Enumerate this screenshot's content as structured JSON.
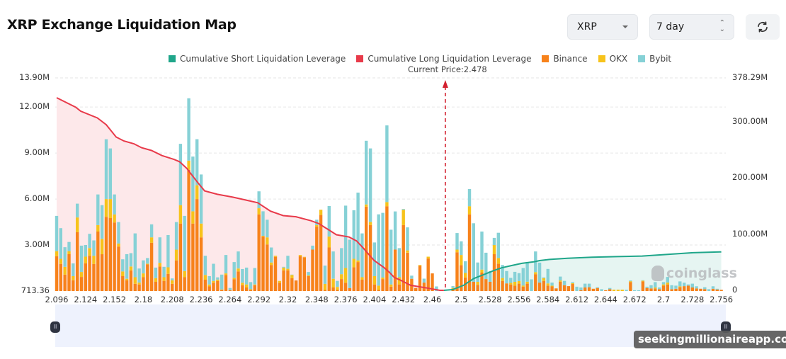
{
  "header": {
    "title": "XRP Exchange Liquidation Map",
    "coin_select": "XRP",
    "range_select": "7 day",
    "refresh_icon": "refresh-icon"
  },
  "legend": [
    {
      "label": "Cumulative Short Liquidation Leverage",
      "color": "#1fa68a"
    },
    {
      "label": "Cumulative Long Liquidation Leverage",
      "color": "#e83a4a"
    },
    {
      "label": "Binance",
      "color": "#f7821b"
    },
    {
      "label": "OKX",
      "color": "#f7c31b"
    },
    {
      "label": "Bybit",
      "color": "#86d1d6"
    }
  ],
  "current_price_label": "Current Price:2.478",
  "watermarks": {
    "brand": "coinglass",
    "overlay": "seekingmillionaireapp.com"
  },
  "chart_data": {
    "type": "bar",
    "stacked": true,
    "current_price": 2.478,
    "x_tick_labels": [
      "2.096",
      "2.124",
      "2.152",
      "2.18",
      "2.208",
      "2.236",
      "2.264",
      "2.292",
      "2.32",
      "2.348",
      "2.376",
      "2.404",
      "2.432",
      "2.46",
      "2.5",
      "2.528",
      "2.556",
      "2.584",
      "2.612",
      "2.644",
      "2.672",
      "2.7",
      "2.728",
      "2.756"
    ],
    "y_left": {
      "ticks": [
        "713.36",
        "3.00M",
        "6.00M",
        "9.00M",
        "12.00M",
        "13.90M"
      ],
      "tick_values_m": [
        0.00071336,
        3,
        6,
        9,
        12,
        13.9
      ],
      "range_m": [
        0.00071336,
        13.9
      ]
    },
    "y_right": {
      "ticks": [
        "0",
        "100.00M",
        "200.00M",
        "300.00M",
        "378.29M"
      ],
      "tick_values_m": [
        0,
        100,
        200,
        300,
        378.29
      ],
      "range_m": [
        0,
        378.29
      ]
    },
    "grid": true,
    "legend_position": "top",
    "series": [
      {
        "name": "Binance",
        "color": "#f7821b",
        "axis": "left",
        "values_m": [
          2.27,
          1.77,
          1.07,
          2.4,
          0.7,
          3.84,
          0.92,
          1.81,
          2.3,
          1.77,
          3.88,
          2.4,
          4.84,
          4.76,
          4.47,
          2.9,
          0.97,
          0.7,
          1.35,
          0.47,
          0.43,
          0.9,
          1.74,
          3.15,
          0.6,
          1.6,
          0.66,
          1.12,
          0.47,
          2.0,
          4.4,
          0.9,
          7.9,
          4.4,
          6.0,
          3.5,
          0.74,
          0.3,
          0.54,
          0.66,
          0.08,
          1.05,
          0.05,
          0.77,
          1.28,
          0.38,
          0.23,
          0.07,
          0.38,
          5.0,
          3.55,
          3.04,
          1.7,
          2.23,
          0.54,
          1.35,
          1.35,
          0.84,
          0.69,
          2.27,
          2.2,
          0.97,
          2.7,
          4.2,
          4.96,
          0.07,
          2.84,
          0.23,
          0.07,
          0.78,
          0.54,
          0.2,
          1.55,
          1.89,
          0.74,
          5.5,
          4.3,
          0.43,
          0.07,
          0.78,
          5.53,
          0.28,
          2.7,
          0.43,
          4.3,
          2.5,
          0.8,
          0.2,
          1.65,
          0.55,
          2.12,
          1.15,
          0,
          0,
          0,
          0,
          0.1,
          2.53,
          1.69,
          0.88,
          5.0,
          0.6,
          0.4,
          1.2,
          0.78,
          0.6,
          2.4,
          1.78,
          0.66,
          0.5,
          0.43,
          0.35,
          0.48,
          0.28,
          0.48,
          0,
          1.1,
          0.55,
          0.66,
          0.35,
          0.3,
          0.17,
          0.61,
          0.38,
          0.32,
          0.46,
          0,
          0.05,
          0.23,
          0.25,
          0.15,
          0.2,
          0,
          0.05,
          0.12,
          0,
          0,
          0,
          0,
          0.58,
          0,
          0,
          0.63,
          0.2,
          0.17,
          0.17,
          0.12,
          0.35,
          0.43,
          0.12,
          0.15,
          0.25,
          0.32,
          0.35,
          0.23,
          0.17,
          0.15,
          0.12,
          0,
          0.15,
          0.1,
          0.08
        ]
      },
      {
        "name": "OKX",
        "color": "#f7c31b",
        "axis": "left",
        "values_m": [
          0.33,
          0.33,
          0.51,
          0.2,
          0.27,
          0.96,
          0.32,
          0.43,
          0.5,
          0.53,
          0.42,
          1.0,
          1.16,
          1.24,
          0.53,
          0.2,
          0.31,
          0.1,
          0.25,
          0.43,
          0.12,
          0.25,
          0.04,
          0.35,
          0.24,
          0.24,
          0.24,
          0.43,
          0.23,
          0.7,
          1.2,
          0.4,
          0.6,
          0.8,
          0.9,
          0.9,
          0.31,
          0.13,
          0.12,
          0.08,
          0.02,
          0.1,
          0,
          0.09,
          0.19,
          0.16,
          0.2,
          0.05,
          0.05,
          0.4,
          0.05,
          0.46,
          0.16,
          0.07,
          0.12,
          0.18,
          0.1,
          0.21,
          0,
          0.08,
          0.03,
          0.05,
          0,
          0.1,
          0.34,
          0.4,
          0.71,
          0.57,
          0.2,
          0.32,
          0.96,
          0,
          0.55,
          0.11,
          0.16,
          0.15,
          0.2,
          0.54,
          0.28,
          0.1,
          0.27,
          0.15,
          0,
          0.47,
          1.0,
          0.15,
          0,
          0,
          0.05,
          0,
          0.12,
          0,
          0,
          0,
          0,
          0,
          0.1,
          0.17,
          0.66,
          0.3,
          0.53,
          0,
          0.2,
          0.2,
          0,
          0,
          0.6,
          0.37,
          0.19,
          0,
          0.1,
          0.25,
          0.17,
          0.08,
          0.13,
          0,
          0.13,
          0,
          0.18,
          0.15,
          0.05,
          0,
          0.08,
          0,
          0,
          0.05,
          0,
          0,
          0,
          0,
          0,
          0,
          0,
          0,
          0,
          0.09,
          0.09,
          0.09,
          0,
          0.06,
          0,
          0,
          0.05,
          0,
          0,
          0.06,
          0,
          0.08,
          0.12,
          0,
          0,
          0.06,
          0,
          0,
          0,
          0,
          0,
          0,
          0,
          0,
          0,
          0
        ]
      },
      {
        "name": "Bybit",
        "color": "#86d1d6",
        "axis": "left",
        "values_m": [
          2.3,
          2.0,
          1.28,
          0.6,
          0.83,
          0.9,
          1.72,
          0.76,
          0.93,
          1.0,
          2.0,
          2.2,
          3.9,
          3.3,
          1.3,
          1.4,
          0.79,
          1.6,
          0.87,
          2.86,
          0.92,
          0.85,
          0.37,
          0.85,
          0.69,
          1.66,
          0.68,
          2.1,
          0.12,
          1.8,
          4.0,
          3.6,
          4.07,
          3.57,
          3.0,
          3.2,
          1.25,
          0.54,
          1.12,
          0.15,
          0.97,
          1.2,
          0.15,
          1.03,
          1.11,
          0.89,
          1.1,
          0.46,
          1.07,
          1.1,
          1.6,
          1.15,
          0.98,
          0,
          0,
          0.05,
          0.85,
          0.02,
          0,
          0,
          0,
          0.22,
          0.26,
          0.35,
          0,
          1.19,
          1.99,
          1.78,
          0.39,
          1.7,
          4.07,
          3.15,
          3.17,
          4.42,
          2.86,
          4.15,
          4.8,
          2.2,
          4.65,
          4.22,
          5.0,
          3.57,
          2.49,
          1.9,
          0.05,
          1.5,
          0.2,
          0,
          0,
          0.26,
          0,
          0,
          0.3,
          0,
          0,
          0,
          0.12,
          1.08,
          0.89,
          0.76,
          1.12,
          3.82,
          1.26,
          2.48,
          1.72,
          0.7,
          0.47,
          1.65,
          0.85,
          0.8,
          0.33,
          0.65,
          0.52,
          1.14,
          1.24,
          0.76,
          1.35,
          1.3,
          0.05,
          0.94,
          0.2,
          0,
          0.25,
          0.28,
          0,
          0.07,
          0.28,
          0.18,
          0.25,
          0.23,
          0,
          0.05,
          0.12,
          0,
          0.08,
          0,
          0,
          0,
          0.08,
          0.05,
          0.05,
          0.05,
          0.02,
          0.08,
          0.21,
          0.35,
          0.11,
          0.15,
          0.37,
          0.26,
          0.2,
          0.32,
          0.22,
          0.08,
          0.25,
          0.14,
          0,
          0.13,
          0.12,
          0.16,
          0.05,
          0
        ]
      }
    ],
    "lines": [
      {
        "name": "Cumulative Long Liquidation Leverage",
        "color": "#e83a4a",
        "fill": "#fde8ea",
        "axis": "right",
        "points": [
          [
            2.096,
            343
          ],
          [
            2.1145,
            326
          ],
          [
            2.1193,
            319
          ],
          [
            2.1354,
            307
          ],
          [
            2.144,
            295
          ],
          [
            2.1536,
            273
          ],
          [
            2.1612,
            266
          ],
          [
            2.1708,
            261
          ],
          [
            2.1783,
            254
          ],
          [
            2.1879,
            249
          ],
          [
            2.198,
            240
          ],
          [
            2.2099,
            233
          ],
          [
            2.2151,
            229
          ],
          [
            2.2222,
            217
          ],
          [
            2.2322,
            193
          ],
          [
            2.2394,
            177
          ],
          [
            2.2517,
            171
          ],
          [
            2.2666,
            166
          ],
          [
            2.2812,
            160
          ],
          [
            2.2908,
            156
          ],
          [
            2.3032,
            141
          ],
          [
            2.3155,
            133
          ],
          [
            2.3279,
            131
          ],
          [
            2.3423,
            124
          ],
          [
            2.3498,
            119
          ],
          [
            2.3594,
            108
          ],
          [
            2.367,
            99
          ],
          [
            2.3793,
            95
          ],
          [
            2.3866,
            88
          ],
          [
            2.3937,
            74
          ],
          [
            2.4037,
            53
          ],
          [
            2.4136,
            40
          ],
          [
            2.4184,
            32
          ],
          [
            2.4232,
            23
          ],
          [
            2.428,
            19
          ],
          [
            2.439,
            9
          ],
          [
            2.4552,
            4
          ],
          [
            2.4703,
            0
          ],
          [
            2.476,
            0
          ]
        ]
      },
      {
        "name": "Cumulative Short Liquidation Leverage",
        "color": "#1fa68a",
        "fill": "#e6f5f2",
        "axis": "right",
        "points": [
          [
            2.476,
            0
          ],
          [
            2.4879,
            1.3
          ],
          [
            2.5023,
            9
          ],
          [
            2.5122,
            21
          ],
          [
            2.5218,
            28
          ],
          [
            2.5314,
            35
          ],
          [
            2.5389,
            40
          ],
          [
            2.5485,
            44
          ],
          [
            2.5588,
            48
          ],
          [
            2.5709,
            51
          ],
          [
            2.576,
            53
          ],
          [
            2.5856,
            55
          ],
          [
            2.6028,
            57
          ],
          [
            2.6288,
            59
          ],
          [
            2.6547,
            60
          ],
          [
            2.6794,
            61
          ],
          [
            2.7041,
            64
          ],
          [
            2.7285,
            67
          ],
          [
            2.756,
            68.5
          ]
        ]
      }
    ]
  }
}
